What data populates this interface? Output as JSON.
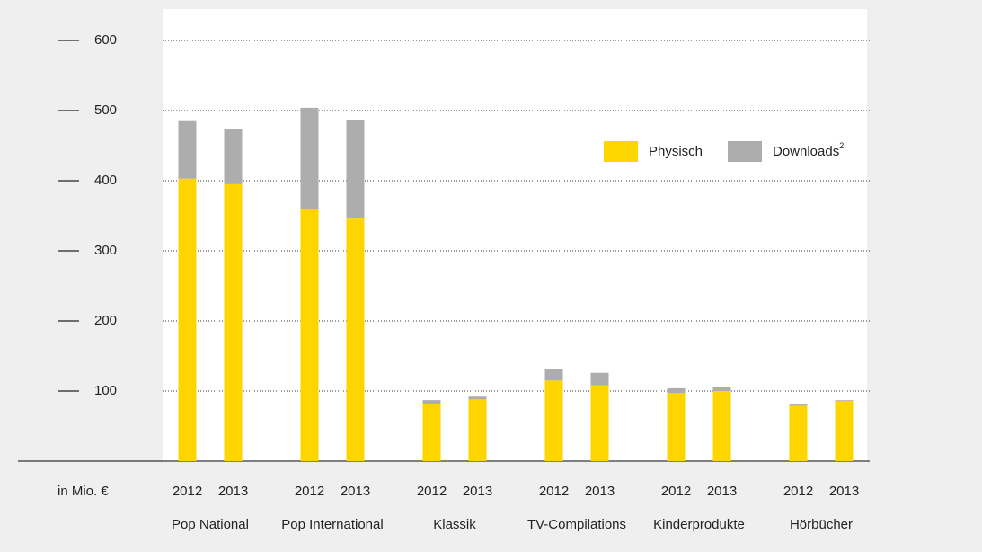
{
  "chart_data": {
    "type": "bar",
    "stacked": true,
    "axis_label": "in Mio. €",
    "groups": [
      "Pop National",
      "Pop International",
      "Klassik",
      "TV-Compilations",
      "Kinderprodukte",
      "Hörbücher"
    ],
    "categories": [
      "2012",
      "2013",
      "2012",
      "2013",
      "2012",
      "2013",
      "2012",
      "2013",
      "2012",
      "2013",
      "2012",
      "2013"
    ],
    "series": [
      {
        "name": "Physisch",
        "color": "#ffd500",
        "values": [
          403,
          395,
          360,
          346,
          82,
          88,
          115,
          108,
          97,
          100,
          79,
          86
        ]
      },
      {
        "name": "Downloads",
        "footnote": "2",
        "color": "#adadad",
        "values": [
          82,
          79,
          144,
          140,
          5,
          4,
          17,
          18,
          7,
          6,
          3,
          1
        ]
      }
    ],
    "ylim": [
      0,
      600
    ],
    "yticks": [
      100,
      200,
      300,
      400,
      500,
      600
    ],
    "grid": true
  }
}
